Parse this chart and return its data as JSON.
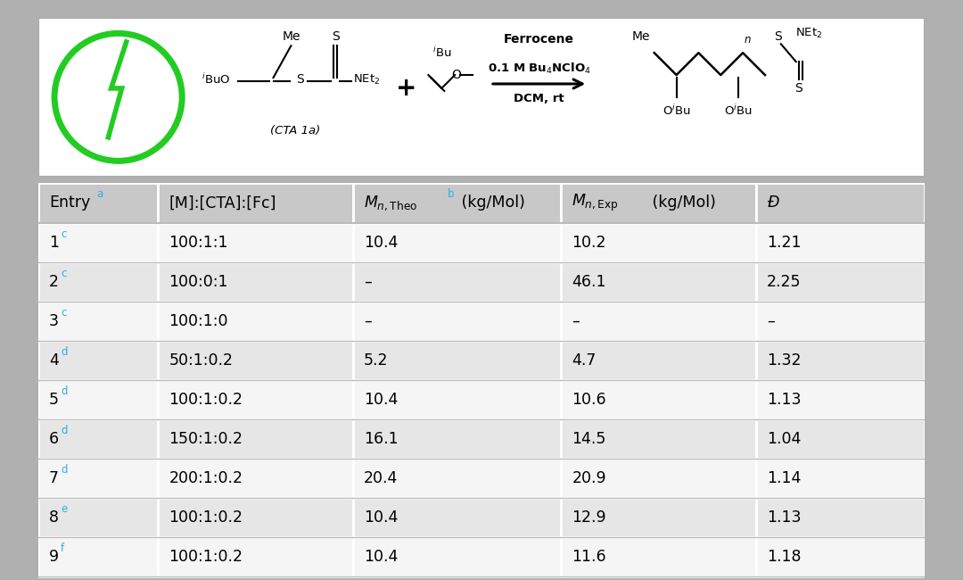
{
  "outer_bg": "#b0b0b0",
  "image_panel_bg": "#ffffff",
  "image_panel_edge": "#aaaaaa",
  "table_bg_white": "#f5f5f5",
  "table_bg_gray": "#e6e6e6",
  "header_bg": "#c8c8c8",
  "sep_line_color": "#bbbbbb",
  "text_color": "#111111",
  "superscript_color": "#2ab0e8",
  "green_circle_color": "#22cc22",
  "arrow_color": "#111111",
  "col_headers": [
    "Entry",
    "[M]:[CTA]:[Fc]",
    "M_n,Theo (kg/Mol)",
    "M_n,Exp (kg/Mol)",
    "D"
  ],
  "header_sups": [
    "a",
    "",
    "b",
    "",
    ""
  ],
  "row_numbers": [
    "1",
    "2",
    "3",
    "4",
    "5",
    "6",
    "7",
    "8",
    "9"
  ],
  "row_superscripts": [
    "c",
    "c",
    "c",
    "d",
    "d",
    "d",
    "d",
    "e",
    "f"
  ],
  "col1": [
    "100:1:1",
    "100:0:1",
    "100:1:0",
    "50:1:0.2",
    "100:1:0.2",
    "150:1:0.2",
    "200:1:0.2",
    "100:1:0.2",
    "100:1:0.2"
  ],
  "col2": [
    "10.4",
    "–",
    "–",
    "5.2",
    "10.4",
    "16.1",
    "20.4",
    "10.4",
    "10.4"
  ],
  "col3": [
    "10.2",
    "46.1",
    "–",
    "4.7",
    "10.6",
    "14.5",
    "20.9",
    "12.9",
    "11.6"
  ],
  "col4": [
    "1.21",
    "2.25",
    "–",
    "1.32",
    "1.13",
    "1.04",
    "1.14",
    "1.13",
    "1.18"
  ]
}
